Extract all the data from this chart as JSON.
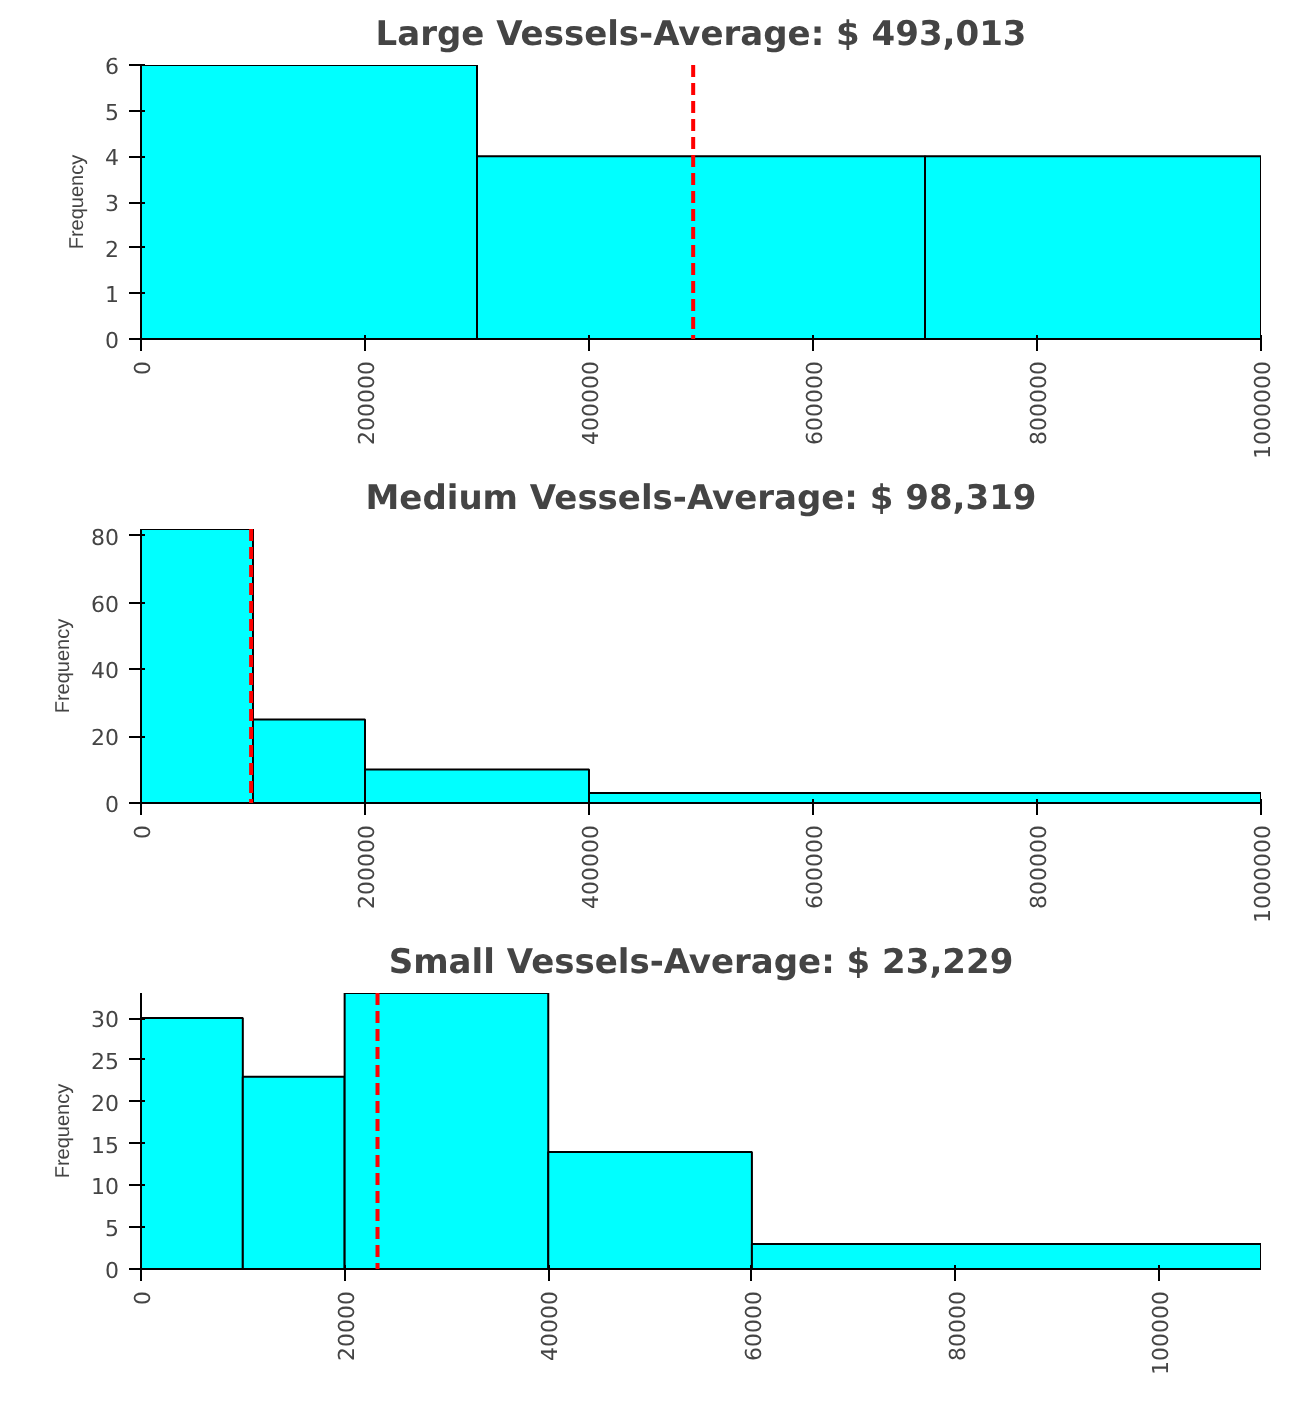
{
  "chart_data": [
    {
      "type": "histogram",
      "title": "Large Vessels-Average: $ 493,013",
      "ylabel": "Frequency",
      "bins": [
        0,
        300000,
        700000,
        1000000
      ],
      "values": [
        6,
        4,
        4
      ],
      "color": "#00ffff",
      "xlim": [
        0,
        1000000
      ],
      "xticks": [
        0,
        200000,
        400000,
        600000,
        800000,
        1000000
      ],
      "ylim": [
        0,
        6
      ],
      "yticks": [
        0,
        1,
        2,
        3,
        4,
        5,
        6
      ],
      "grid": false,
      "ref_lines": [
        {
          "axis": "x",
          "value": 493013,
          "color": "#ff0000",
          "line_style": "dashed"
        }
      ]
    },
    {
      "type": "histogram",
      "title": "Medium Vessels-Average: $ 98,319",
      "ylabel": "Frequency",
      "bins": [
        0,
        100000,
        200000,
        400000,
        1000000
      ],
      "values": [
        82,
        25,
        10,
        3
      ],
      "color": "#00ffff",
      "xlim": [
        0,
        1000000
      ],
      "xticks": [
        0,
        200000,
        400000,
        600000,
        800000,
        1000000
      ],
      "ylim": [
        0,
        82
      ],
      "yticks": [
        0,
        20,
        40,
        60,
        80
      ],
      "grid": false,
      "ref_lines": [
        {
          "axis": "x",
          "value": 98319,
          "color": "#ff0000",
          "line_style": "dashed"
        }
      ]
    },
    {
      "type": "histogram",
      "title": "Small Vessels-Average: $ 23,229",
      "ylabel": "Frequency",
      "bins": [
        0,
        10000,
        20000,
        40000,
        60000,
        110000
      ],
      "values": [
        30,
        23,
        33,
        14,
        3
      ],
      "color": "#00ffff",
      "xlim": [
        0,
        110000
      ],
      "xticks": [
        0,
        20000,
        40000,
        60000,
        80000,
        100000
      ],
      "ylim": [
        0,
        33
      ],
      "yticks": [
        0,
        5,
        10,
        15,
        20,
        25,
        30
      ],
      "grid": false,
      "ref_lines": [
        {
          "axis": "x",
          "value": 23229,
          "color": "#ff0000",
          "line_style": "dashed"
        }
      ]
    }
  ]
}
